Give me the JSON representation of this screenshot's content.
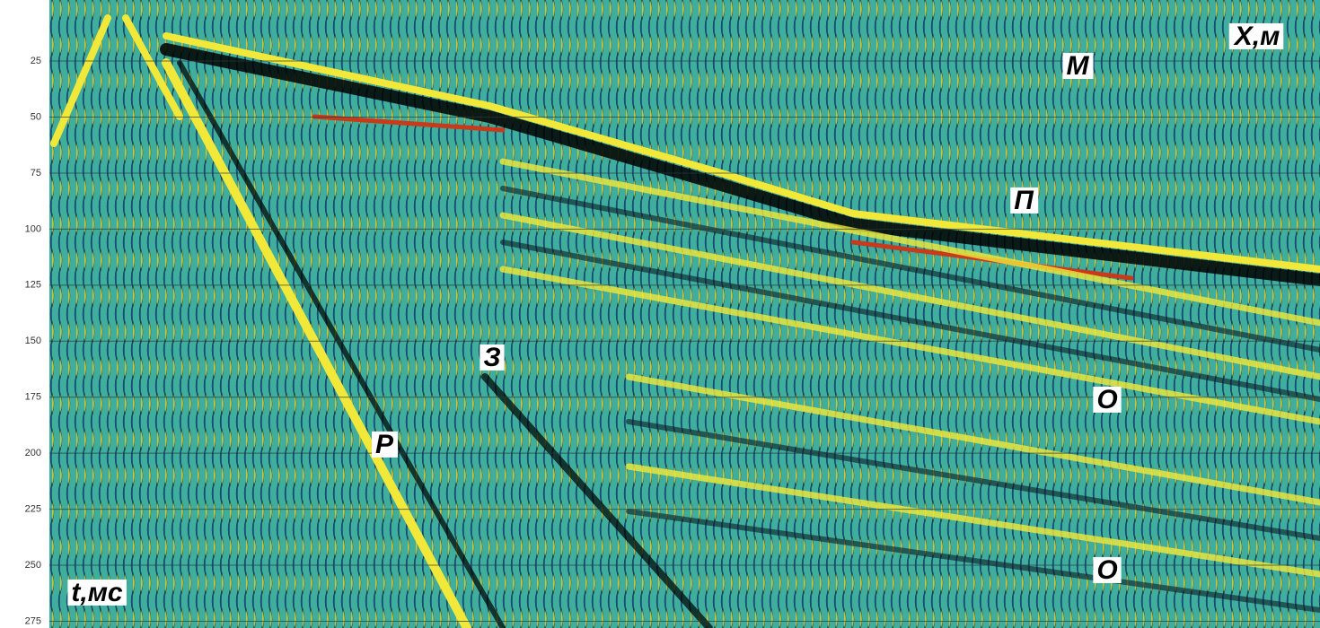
{
  "chart_data": {
    "type": "seismogram",
    "ylim": [
      0,
      278
    ],
    "yticks": [
      25,
      50,
      75,
      100,
      125,
      150,
      175,
      200,
      225,
      250,
      275
    ],
    "grid": true,
    "annotations": [
      "X,м",
      "М",
      "П",
      "З",
      "Р",
      "О",
      "О",
      "t,мс"
    ]
  }
}
